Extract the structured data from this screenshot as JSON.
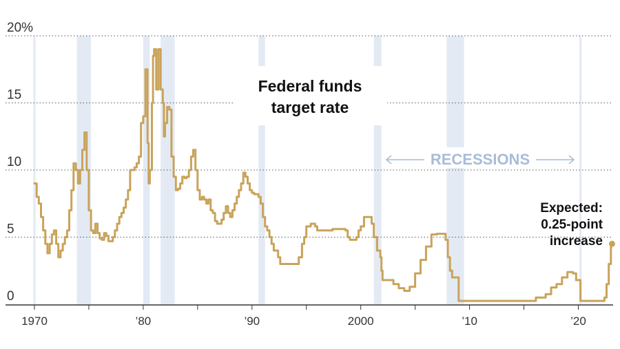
{
  "chart_data": {
    "type": "line",
    "title": "Federal funds target rate",
    "xlim": [
      1970,
      2023.2
    ],
    "ylim": [
      0,
      20
    ],
    "y_ticks": [
      {
        "value": 0,
        "label": "0"
      },
      {
        "value": 5,
        "label": "5"
      },
      {
        "value": 10,
        "label": "10"
      },
      {
        "value": 15,
        "label": "15"
      },
      {
        "value": 20,
        "label": "20%"
      }
    ],
    "x_ticks": [
      {
        "value": 1970,
        "label": "1970"
      },
      {
        "value": 1975,
        "label": ""
      },
      {
        "value": 1980,
        "label": "’80"
      },
      {
        "value": 1985,
        "label": ""
      },
      {
        "value": 1990,
        "label": "’90"
      },
      {
        "value": 1995,
        "label": ""
      },
      {
        "value": 2000,
        "label": "2000"
      },
      {
        "value": 2005,
        "label": ""
      },
      {
        "value": 2010,
        "label": "’10"
      },
      {
        "value": 2015,
        "label": ""
      },
      {
        "value": 2020,
        "label": "’20"
      }
    ],
    "grid": "dotted horizontal",
    "line_color": "#c9a35b",
    "recession_color": "#e3eaf4",
    "recession_label": "RECESSIONS",
    "recessions": [
      [
        1969.9,
        1970.1
      ],
      [
        1973.9,
        1975.2
      ],
      [
        1980.0,
        1980.6
      ],
      [
        1981.6,
        1982.9
      ],
      [
        1990.6,
        1991.2
      ],
      [
        2001.2,
        2001.9
      ],
      [
        2007.9,
        2009.5
      ],
      [
        2020.1,
        2020.3
      ]
    ],
    "series": [
      {
        "values": [
          [
            1970.0,
            9.0
          ],
          [
            1970.2,
            8.0
          ],
          [
            1970.4,
            7.5
          ],
          [
            1970.6,
            6.5
          ],
          [
            1970.8,
            5.5
          ],
          [
            1971.0,
            4.5
          ],
          [
            1971.2,
            3.8
          ],
          [
            1971.4,
            4.5
          ],
          [
            1971.6,
            5.2
          ],
          [
            1971.8,
            5.5
          ],
          [
            1972.0,
            4.5
          ],
          [
            1972.2,
            3.5
          ],
          [
            1972.4,
            4.0
          ],
          [
            1972.6,
            4.5
          ],
          [
            1972.8,
            5.0
          ],
          [
            1973.0,
            5.5
          ],
          [
            1973.2,
            7.0
          ],
          [
            1973.4,
            8.5
          ],
          [
            1973.6,
            10.5
          ],
          [
            1973.8,
            10.0
          ],
          [
            1974.0,
            9.0
          ],
          [
            1974.2,
            10.0
          ],
          [
            1974.4,
            11.5
          ],
          [
            1974.6,
            12.8
          ],
          [
            1974.8,
            10.0
          ],
          [
            1975.0,
            7.0
          ],
          [
            1975.2,
            5.5
          ],
          [
            1975.4,
            5.3
          ],
          [
            1975.6,
            6.0
          ],
          [
            1975.8,
            5.3
          ],
          [
            1976.0,
            4.9
          ],
          [
            1976.2,
            4.8
          ],
          [
            1976.4,
            5.3
          ],
          [
            1976.6,
            5.1
          ],
          [
            1976.8,
            4.7
          ],
          [
            1977.0,
            4.7
          ],
          [
            1977.2,
            5.0
          ],
          [
            1977.4,
            5.5
          ],
          [
            1977.6,
            6.0
          ],
          [
            1977.8,
            6.5
          ],
          [
            1978.0,
            6.8
          ],
          [
            1978.2,
            7.2
          ],
          [
            1978.4,
            7.8
          ],
          [
            1978.6,
            8.5
          ],
          [
            1978.8,
            10.0
          ],
          [
            1979.0,
            10.0
          ],
          [
            1979.2,
            10.2
          ],
          [
            1979.4,
            10.5
          ],
          [
            1979.6,
            11.0
          ],
          [
            1979.8,
            13.5
          ],
          [
            1980.0,
            14.0
          ],
          [
            1980.2,
            17.5
          ],
          [
            1980.4,
            12.0
          ],
          [
            1980.5,
            9.0
          ],
          [
            1980.6,
            10.0
          ],
          [
            1980.8,
            15.0
          ],
          [
            1980.9,
            18.5
          ],
          [
            1981.0,
            19.0
          ],
          [
            1981.2,
            16.0
          ],
          [
            1981.4,
            19.0
          ],
          [
            1981.6,
            16.0
          ],
          [
            1981.8,
            15.0
          ],
          [
            1981.9,
            12.5
          ],
          [
            1982.0,
            13.5
          ],
          [
            1982.2,
            14.7
          ],
          [
            1982.4,
            14.5
          ],
          [
            1982.6,
            11.0
          ],
          [
            1982.8,
            9.5
          ],
          [
            1983.0,
            8.5
          ],
          [
            1983.2,
            8.6
          ],
          [
            1983.4,
            9.0
          ],
          [
            1983.6,
            9.5
          ],
          [
            1983.8,
            9.4
          ],
          [
            1984.0,
            9.5
          ],
          [
            1984.2,
            10.0
          ],
          [
            1984.4,
            11.0
          ],
          [
            1984.6,
            11.5
          ],
          [
            1984.8,
            10.0
          ],
          [
            1985.0,
            8.5
          ],
          [
            1985.2,
            7.8
          ],
          [
            1985.4,
            8.0
          ],
          [
            1985.6,
            7.8
          ],
          [
            1985.8,
            7.5
          ],
          [
            1986.0,
            7.8
          ],
          [
            1986.2,
            7.0
          ],
          [
            1986.4,
            6.8
          ],
          [
            1986.6,
            6.2
          ],
          [
            1986.8,
            6.0
          ],
          [
            1987.0,
            6.0
          ],
          [
            1987.2,
            6.3
          ],
          [
            1987.4,
            6.8
          ],
          [
            1987.6,
            7.3
          ],
          [
            1987.8,
            6.8
          ],
          [
            1988.0,
            6.5
          ],
          [
            1988.2,
            7.0
          ],
          [
            1988.4,
            7.5
          ],
          [
            1988.6,
            8.0
          ],
          [
            1988.8,
            8.5
          ],
          [
            1989.0,
            9.0
          ],
          [
            1989.2,
            9.8
          ],
          [
            1989.4,
            9.5
          ],
          [
            1989.6,
            9.0
          ],
          [
            1989.8,
            8.5
          ],
          [
            1990.0,
            8.3
          ],
          [
            1990.2,
            8.2
          ],
          [
            1990.4,
            8.2
          ],
          [
            1990.6,
            8.0
          ],
          [
            1990.8,
            7.5
          ],
          [
            1991.0,
            6.5
          ],
          [
            1991.2,
            5.8
          ],
          [
            1991.4,
            5.5
          ],
          [
            1991.6,
            5.0
          ],
          [
            1991.8,
            4.5
          ],
          [
            1992.0,
            4.0
          ],
          [
            1992.4,
            3.5
          ],
          [
            1992.6,
            3.0
          ],
          [
            1993.0,
            3.0
          ],
          [
            1994.0,
            3.0
          ],
          [
            1994.3,
            3.5
          ],
          [
            1994.6,
            4.5
          ],
          [
            1994.8,
            5.0
          ],
          [
            1995.0,
            5.8
          ],
          [
            1995.4,
            6.0
          ],
          [
            1995.8,
            5.8
          ],
          [
            1996.0,
            5.5
          ],
          [
            1997.0,
            5.5
          ],
          [
            1997.2,
            5.5
          ],
          [
            1997.4,
            5.6
          ],
          [
            1998.0,
            5.6
          ],
          [
            1998.6,
            5.5
          ],
          [
            1998.8,
            5.0
          ],
          [
            1999.0,
            4.8
          ],
          [
            1999.4,
            4.8
          ],
          [
            1999.6,
            5.0
          ],
          [
            1999.8,
            5.5
          ],
          [
            2000.0,
            5.8
          ],
          [
            2000.3,
            6.5
          ],
          [
            2000.6,
            6.5
          ],
          [
            2000.9,
            6.5
          ],
          [
            2001.0,
            6.0
          ],
          [
            2001.2,
            5.0
          ],
          [
            2001.5,
            4.0
          ],
          [
            2001.8,
            3.5
          ],
          [
            2001.9,
            2.5
          ],
          [
            2002.0,
            1.8
          ],
          [
            2003.0,
            1.5
          ],
          [
            2003.5,
            1.2
          ],
          [
            2004.0,
            1.0
          ],
          [
            2004.5,
            1.3
          ],
          [
            2005.0,
            2.3
          ],
          [
            2005.5,
            3.3
          ],
          [
            2006.0,
            4.3
          ],
          [
            2006.5,
            5.2
          ],
          [
            2007.0,
            5.25
          ],
          [
            2007.6,
            5.25
          ],
          [
            2007.8,
            4.8
          ],
          [
            2008.0,
            3.5
          ],
          [
            2008.2,
            2.5
          ],
          [
            2008.4,
            2.0
          ],
          [
            2008.8,
            2.0
          ],
          [
            2009.0,
            0.25
          ],
          [
            2012.0,
            0.25
          ],
          [
            2015.9,
            0.25
          ],
          [
            2016.1,
            0.5
          ],
          [
            2017.0,
            0.75
          ],
          [
            2017.5,
            1.25
          ],
          [
            2018.0,
            1.5
          ],
          [
            2018.5,
            2.0
          ],
          [
            2019.0,
            2.4
          ],
          [
            2019.5,
            2.3
          ],
          [
            2019.8,
            1.8
          ],
          [
            2020.2,
            0.25
          ],
          [
            2021.0,
            0.25
          ],
          [
            2022.2,
            0.25
          ],
          [
            2022.4,
            0.5
          ],
          [
            2022.6,
            1.5
          ],
          [
            2022.8,
            3.0
          ],
          [
            2023.0,
            4.3
          ]
        ]
      }
    ],
    "expected_point": {
      "x": 2023.1,
      "y": 4.5
    },
    "annotation_lines": [
      "Expected:",
      "0.25-point",
      "increase"
    ]
  }
}
